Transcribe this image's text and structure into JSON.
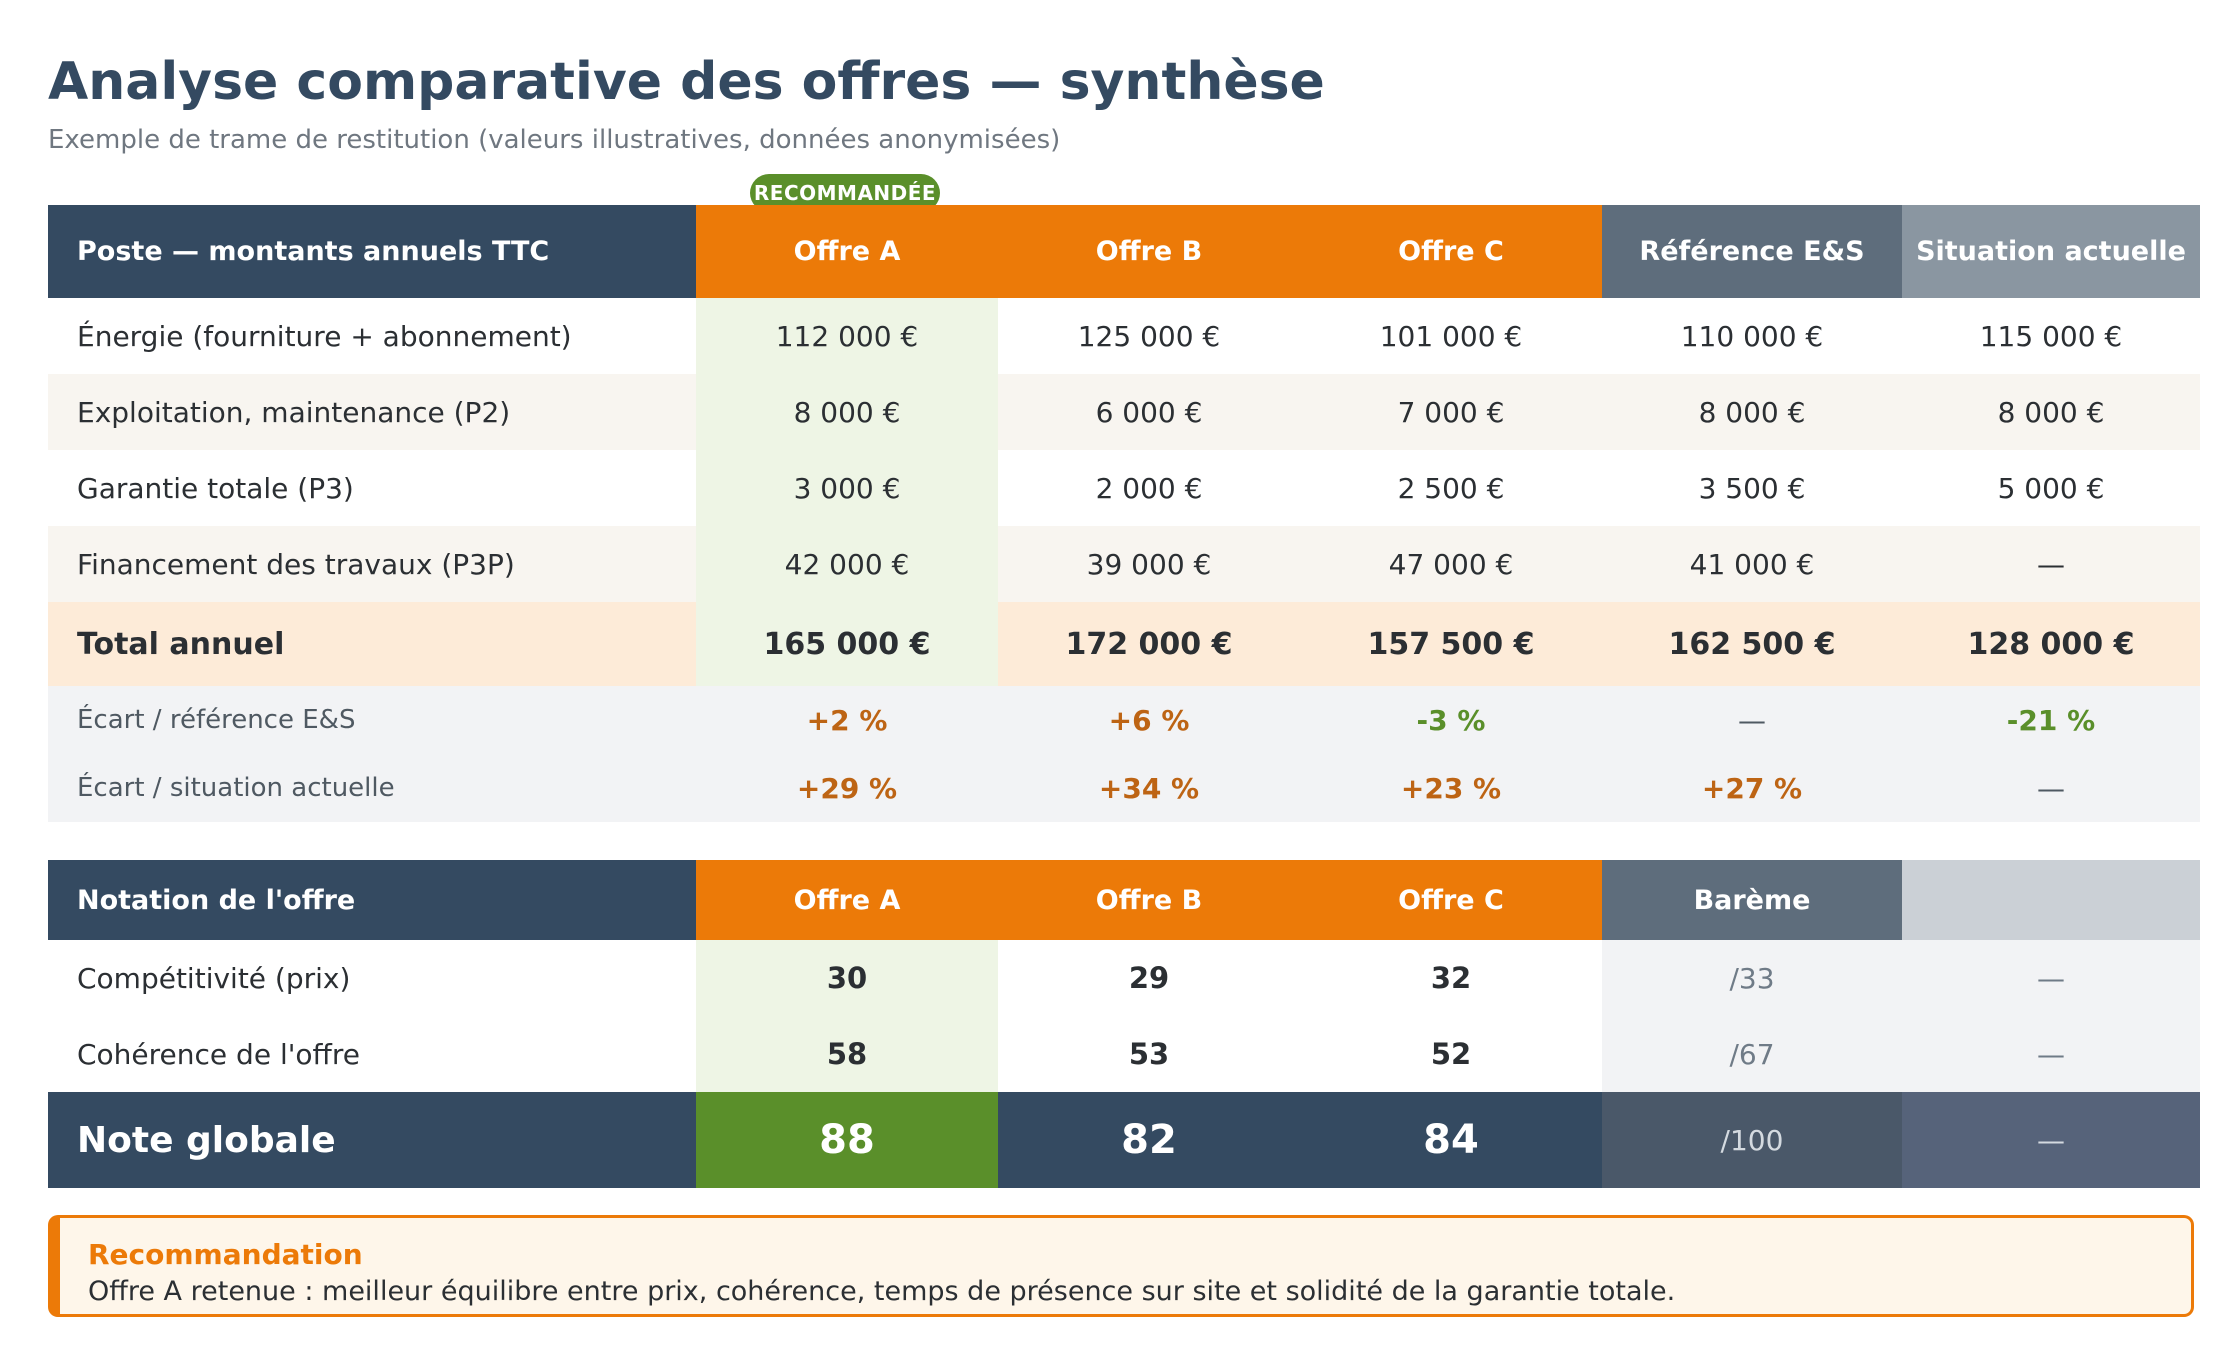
{
  "header": {
    "title": "Analyse comparative des offres — synthèse",
    "subtitle": "Exemple de trame de restitution (valeurs illustratives, données anonymisées)",
    "badge": "RECOMMANDÉE"
  },
  "costs_table": {
    "columns": [
      "Poste — montants annuels TTC",
      "Offre A",
      "Offre B",
      "Offre C",
      "Référence E&S",
      "Situation actuelle"
    ],
    "rows": [
      [
        "Énergie (fourniture + abonnement)",
        "112 000 €",
        "125 000 €",
        "101 000 €",
        "110 000 €",
        "115 000 €"
      ],
      [
        "Exploitation, maintenance (P2)",
        "8 000 €",
        "6 000 €",
        "7 000 €",
        "8 000 €",
        "8 000 €"
      ],
      [
        "Garantie totale (P3)",
        "3 000 €",
        "2 000 €",
        "2 500 €",
        "3 500 €",
        "5 000 €"
      ],
      [
        "Financement des travaux (P3P)",
        "42 000 €",
        "39 000 €",
        "47 000 €",
        "41 000 €",
        "—"
      ]
    ],
    "total": [
      "Total annuel",
      "165 000 €",
      "172 000 €",
      "157 500 €",
      "162 500 €",
      "128 000 €"
    ],
    "ecarts": [
      [
        "Écart / référence E&S",
        "+2 %",
        "+6 %",
        "-3 %",
        "—",
        "-21 %"
      ],
      [
        "Écart / situation actuelle",
        "+29 %",
        "+34 %",
        "+23 %",
        "+27 %",
        "—"
      ]
    ]
  },
  "scores_table": {
    "columns": [
      "Notation de l'offre",
      "Offre A",
      "Offre B",
      "Offre C",
      "Barème",
      ""
    ],
    "rows": [
      [
        "Compétitivité (prix)",
        "30",
        "29",
        "32",
        "/33",
        "—"
      ],
      [
        "Cohérence de l'offre",
        "58",
        "53",
        "52",
        "/67",
        "—"
      ]
    ],
    "global": [
      "Note globale",
      "88",
      "82",
      "84",
      "/100",
      "—"
    ]
  },
  "recommendation": {
    "title": "Recommandation",
    "text": "Offre A retenue : meilleur équilibre entre prix, cohérence, temps de présence sur site et solidité de la garantie totale."
  },
  "colors": {
    "navy": "#344a61",
    "orange": "#ec7a08",
    "green": "#5a8f2a",
    "slate": "#5e6d7c"
  }
}
